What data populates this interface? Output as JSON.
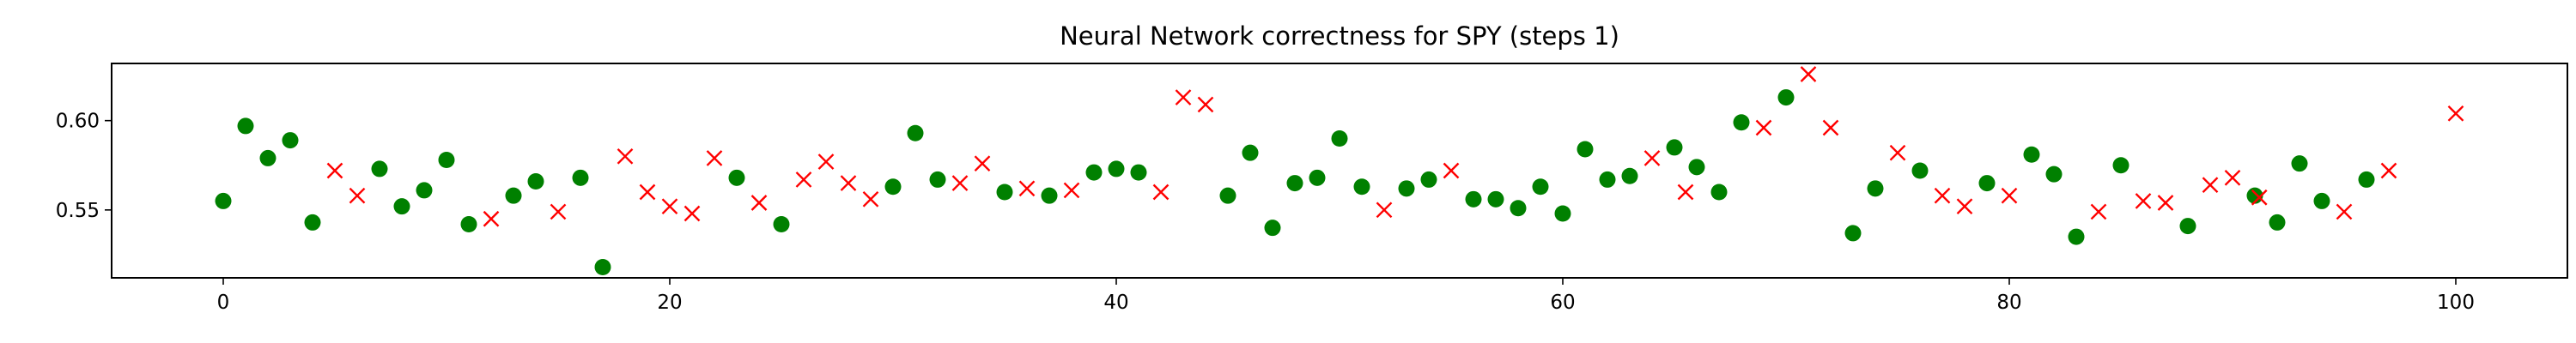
{
  "chart_data": {
    "type": "scatter",
    "title": "Neural Network correctness for SPY (steps 1)",
    "xlabel": "",
    "ylabel": "",
    "xlim": [
      -5,
      105
    ],
    "ylim": [
      0.512,
      0.632
    ],
    "xticks": [
      0,
      20,
      40,
      60,
      80,
      100
    ],
    "yticks": [
      0.55,
      0.6
    ],
    "ytick_labels": [
      "0.55",
      "0.60"
    ],
    "grid": false,
    "legend": "none",
    "series": [
      {
        "marker": "circle",
        "color": "#008000",
        "points": [
          [
            0,
            0.555
          ],
          [
            1,
            0.597
          ],
          [
            2,
            0.579
          ],
          [
            3,
            0.589
          ],
          [
            4,
            0.543
          ],
          [
            7,
            0.573
          ],
          [
            8,
            0.552
          ],
          [
            9,
            0.561
          ],
          [
            10,
            0.578
          ],
          [
            11,
            0.542
          ],
          [
            13,
            0.558
          ],
          [
            14,
            0.566
          ],
          [
            16,
            0.568
          ],
          [
            17,
            0.518
          ],
          [
            23,
            0.568
          ],
          [
            25,
            0.542
          ],
          [
            30,
            0.563
          ],
          [
            31,
            0.593
          ],
          [
            32,
            0.567
          ],
          [
            35,
            0.56
          ],
          [
            37,
            0.558
          ],
          [
            39,
            0.571
          ],
          [
            40,
            0.573
          ],
          [
            41,
            0.571
          ],
          [
            45,
            0.558
          ],
          [
            46,
            0.582
          ],
          [
            47,
            0.54
          ],
          [
            48,
            0.565
          ],
          [
            49,
            0.568
          ],
          [
            50,
            0.59
          ],
          [
            51,
            0.563
          ],
          [
            53,
            0.562
          ],
          [
            54,
            0.567
          ],
          [
            56,
            0.556
          ],
          [
            57,
            0.556
          ],
          [
            58,
            0.551
          ],
          [
            59,
            0.563
          ],
          [
            60,
            0.548
          ],
          [
            61,
            0.584
          ],
          [
            62,
            0.567
          ],
          [
            63,
            0.569
          ],
          [
            65,
            0.585
          ],
          [
            66,
            0.574
          ],
          [
            67,
            0.56
          ],
          [
            68,
            0.599
          ],
          [
            70,
            0.613
          ],
          [
            73,
            0.537
          ],
          [
            74,
            0.562
          ],
          [
            76,
            0.572
          ],
          [
            79,
            0.565
          ],
          [
            81,
            0.581
          ],
          [
            82,
            0.57
          ],
          [
            83,
            0.535
          ],
          [
            85,
            0.575
          ],
          [
            88,
            0.541
          ],
          [
            91,
            0.558
          ],
          [
            92,
            0.543
          ],
          [
            93,
            0.576
          ],
          [
            94,
            0.555
          ],
          [
            96,
            0.567
          ]
        ]
      },
      {
        "marker": "x",
        "color": "#ff0000",
        "points": [
          [
            5,
            0.572
          ],
          [
            6,
            0.558
          ],
          [
            12,
            0.545
          ],
          [
            15,
            0.549
          ],
          [
            18,
            0.58
          ],
          [
            19,
            0.56
          ],
          [
            20,
            0.552
          ],
          [
            21,
            0.548
          ],
          [
            22,
            0.579
          ],
          [
            24,
            0.554
          ],
          [
            26,
            0.567
          ],
          [
            27,
            0.577
          ],
          [
            28,
            0.565
          ],
          [
            29,
            0.556
          ],
          [
            33,
            0.565
          ],
          [
            34,
            0.576
          ],
          [
            36,
            0.562
          ],
          [
            38,
            0.561
          ],
          [
            42,
            0.56
          ],
          [
            43,
            0.613
          ],
          [
            44,
            0.609
          ],
          [
            52,
            0.55
          ],
          [
            55,
            0.572
          ],
          [
            64,
            0.579
          ],
          [
            65.5,
            0.56
          ],
          [
            69,
            0.596
          ],
          [
            71,
            0.626
          ],
          [
            72,
            0.596
          ],
          [
            75,
            0.582
          ],
          [
            77,
            0.558
          ],
          [
            78,
            0.552
          ],
          [
            80,
            0.558
          ],
          [
            84,
            0.549
          ],
          [
            86,
            0.555
          ],
          [
            87,
            0.554
          ],
          [
            89,
            0.564
          ],
          [
            90,
            0.568
          ],
          [
            91.2,
            0.557
          ],
          [
            95,
            0.549
          ],
          [
            97,
            0.572
          ],
          [
            100,
            0.604
          ]
        ]
      }
    ]
  }
}
